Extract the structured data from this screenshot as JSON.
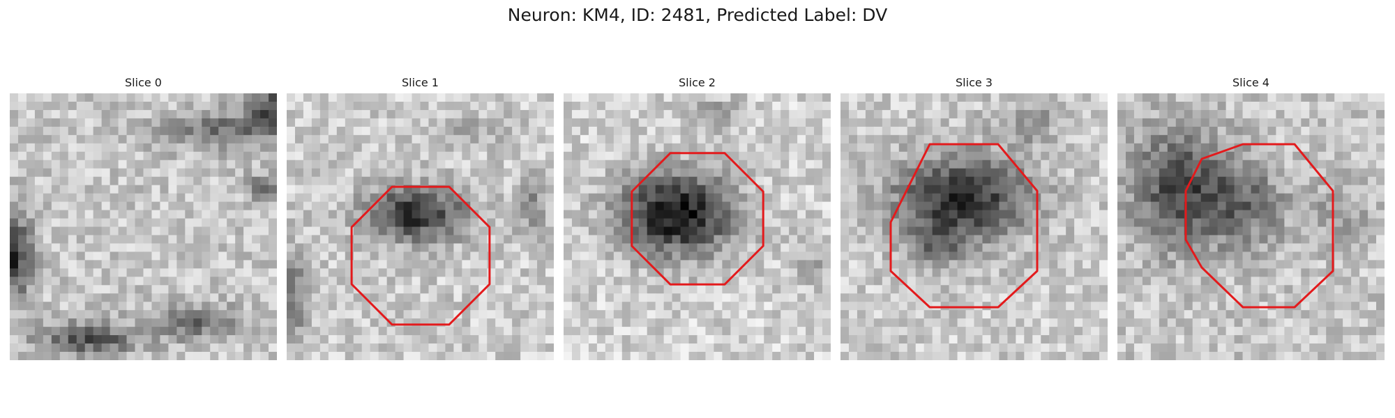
{
  "figure": {
    "title": "Neuron: KM4, ID: 2481, Predicted Label: DV"
  },
  "colors": {
    "contour": "#e31a1c",
    "background": "#ffffff"
  },
  "colormap": "gray",
  "panels": [
    {
      "title": "Slice 0",
      "contour": false
    },
    {
      "title": "Slice 1",
      "contour": true
    },
    {
      "title": "Slice 2",
      "contour": true
    },
    {
      "title": "Slice 3",
      "contour": true
    },
    {
      "title": "Slice 4",
      "contour": true
    }
  ]
}
